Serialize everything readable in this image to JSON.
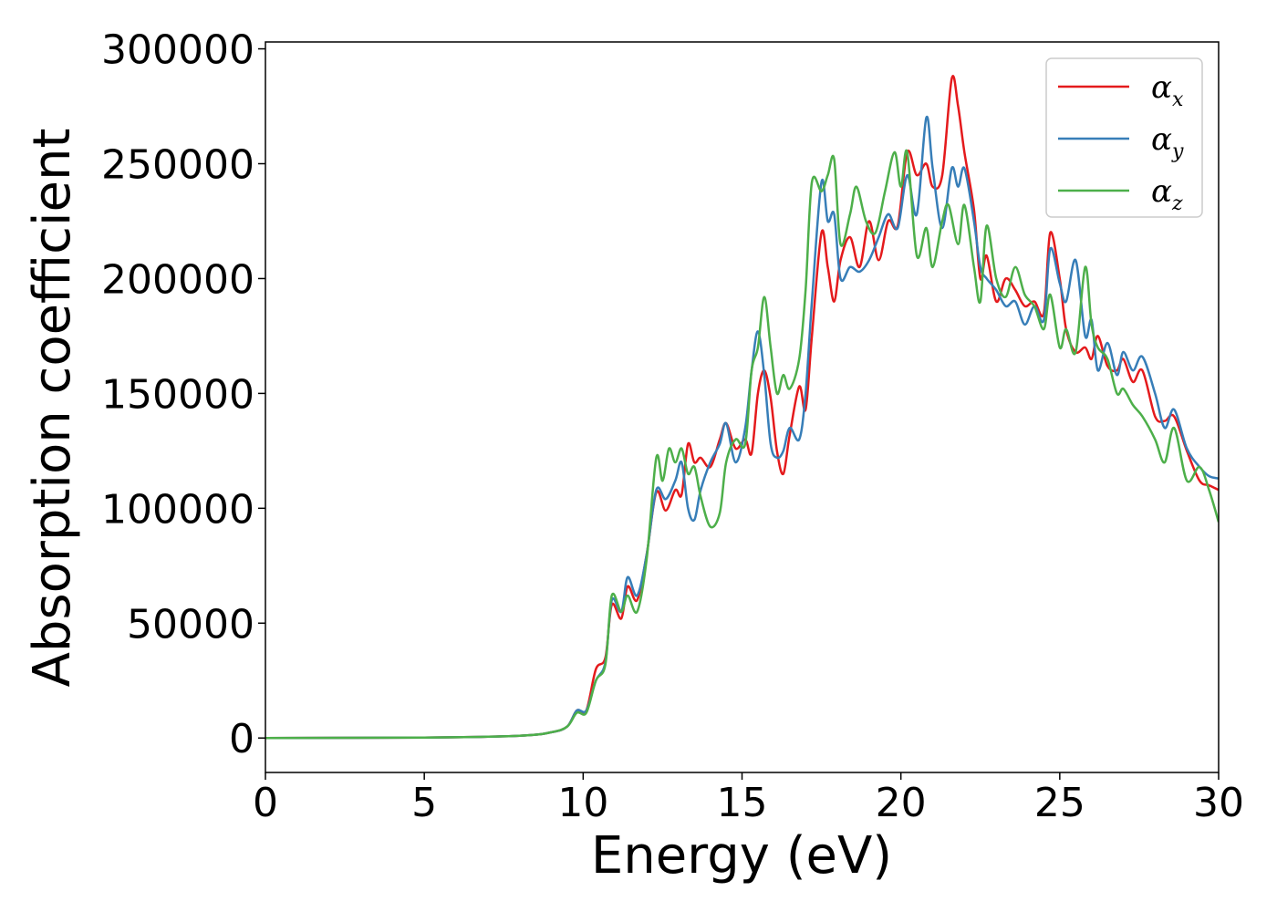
{
  "chart_data": {
    "type": "line",
    "title": "",
    "xlabel": "Energy (eV)",
    "ylabel": "Absorption coefficient",
    "xlim": [
      0,
      30
    ],
    "ylim": [
      -15000,
      303000
    ],
    "xticks": [
      0,
      5,
      10,
      15,
      20,
      25,
      30
    ],
    "yticks": [
      0,
      50000,
      100000,
      150000,
      200000,
      250000,
      300000
    ],
    "grid": false,
    "legend_position": "top-right",
    "series": [
      {
        "name": "α_x",
        "label_main": "α",
        "label_sub": "x",
        "color": "#e41a1c",
        "points": [
          [
            0,
            0
          ],
          [
            5,
            200
          ],
          [
            8,
            1000
          ],
          [
            9,
            2500
          ],
          [
            9.5,
            5000
          ],
          [
            9.8,
            12000
          ],
          [
            10.1,
            12000
          ],
          [
            10.4,
            30000
          ],
          [
            10.7,
            35000
          ],
          [
            10.9,
            58000
          ],
          [
            11.2,
            52000
          ],
          [
            11.4,
            66000
          ],
          [
            11.7,
            60000
          ],
          [
            12,
            80000
          ],
          [
            12.3,
            107000
          ],
          [
            12.6,
            99000
          ],
          [
            12.9,
            108000
          ],
          [
            13.1,
            106000
          ],
          [
            13.3,
            128000
          ],
          [
            13.5,
            120000
          ],
          [
            13.7,
            122000
          ],
          [
            14,
            118000
          ],
          [
            14.3,
            130000
          ],
          [
            14.5,
            137000
          ],
          [
            14.8,
            126000
          ],
          [
            15.1,
            130000
          ],
          [
            15.3,
            124000
          ],
          [
            15.5,
            150000
          ],
          [
            15.7,
            160000
          ],
          [
            15.9,
            148000
          ],
          [
            16.1,
            125000
          ],
          [
            16.3,
            115000
          ],
          [
            16.5,
            132000
          ],
          [
            16.8,
            153000
          ],
          [
            17,
            143000
          ],
          [
            17.2,
            175000
          ],
          [
            17.5,
            220000
          ],
          [
            17.7,
            205000
          ],
          [
            17.9,
            190000
          ],
          [
            18.1,
            208000
          ],
          [
            18.4,
            218000
          ],
          [
            18.7,
            205000
          ],
          [
            19,
            225000
          ],
          [
            19.3,
            208000
          ],
          [
            19.6,
            225000
          ],
          [
            19.9,
            223000
          ],
          [
            20.2,
            255000
          ],
          [
            20.5,
            245000
          ],
          [
            20.8,
            250000
          ],
          [
            21,
            240000
          ],
          [
            21.3,
            245000
          ],
          [
            21.6,
            287000
          ],
          [
            21.8,
            275000
          ],
          [
            22,
            255000
          ],
          [
            22.3,
            230000
          ],
          [
            22.5,
            200000
          ],
          [
            22.7,
            210000
          ],
          [
            23,
            190000
          ],
          [
            23.3,
            200000
          ],
          [
            23.6,
            195000
          ],
          [
            23.9,
            188000
          ],
          [
            24.2,
            190000
          ],
          [
            24.5,
            185000
          ],
          [
            24.7,
            220000
          ],
          [
            25,
            200000
          ],
          [
            25.2,
            178000
          ],
          [
            25.5,
            168000
          ],
          [
            25.8,
            170000
          ],
          [
            26,
            165000
          ],
          [
            26.2,
            175000
          ],
          [
            26.5,
            162000
          ],
          [
            26.8,
            160000
          ],
          [
            27,
            165000
          ],
          [
            27.3,
            155000
          ],
          [
            27.6,
            160000
          ],
          [
            28,
            140000
          ],
          [
            28.3,
            138000
          ],
          [
            28.6,
            140000
          ],
          [
            29,
            125000
          ],
          [
            29.4,
            112000
          ],
          [
            29.7,
            110000
          ],
          [
            30,
            108000
          ]
        ]
      },
      {
        "name": "α_y",
        "label_main": "α",
        "label_sub": "y",
        "color": "#377eb8",
        "points": [
          [
            0,
            0
          ],
          [
            5,
            200
          ],
          [
            8,
            1000
          ],
          [
            9,
            2500
          ],
          [
            9.5,
            5000
          ],
          [
            9.8,
            12000
          ],
          [
            10.1,
            12000
          ],
          [
            10.4,
            25000
          ],
          [
            10.7,
            33000
          ],
          [
            10.9,
            60000
          ],
          [
            11.2,
            55000
          ],
          [
            11.4,
            70000
          ],
          [
            11.7,
            62000
          ],
          [
            12,
            80000
          ],
          [
            12.3,
            108000
          ],
          [
            12.6,
            104000
          ],
          [
            12.9,
            112000
          ],
          [
            13.1,
            120000
          ],
          [
            13.3,
            100000
          ],
          [
            13.5,
            95000
          ],
          [
            13.7,
            108000
          ],
          [
            14,
            120000
          ],
          [
            14.3,
            128000
          ],
          [
            14.5,
            137000
          ],
          [
            14.8,
            120000
          ],
          [
            15.1,
            135000
          ],
          [
            15.3,
            160000
          ],
          [
            15.5,
            177000
          ],
          [
            15.7,
            158000
          ],
          [
            15.9,
            128000
          ],
          [
            16.1,
            122000
          ],
          [
            16.3,
            125000
          ],
          [
            16.5,
            135000
          ],
          [
            16.8,
            130000
          ],
          [
            17,
            150000
          ],
          [
            17.2,
            190000
          ],
          [
            17.5,
            242000
          ],
          [
            17.7,
            225000
          ],
          [
            17.9,
            228000
          ],
          [
            18.1,
            200000
          ],
          [
            18.4,
            205000
          ],
          [
            18.7,
            203000
          ],
          [
            19,
            208000
          ],
          [
            19.3,
            218000
          ],
          [
            19.6,
            228000
          ],
          [
            19.9,
            222000
          ],
          [
            20.2,
            245000
          ],
          [
            20.5,
            228000
          ],
          [
            20.8,
            270000
          ],
          [
            21,
            248000
          ],
          [
            21.3,
            222000
          ],
          [
            21.6,
            248000
          ],
          [
            21.8,
            240000
          ],
          [
            22,
            248000
          ],
          [
            22.3,
            225000
          ],
          [
            22.5,
            205000
          ],
          [
            22.7,
            200000
          ],
          [
            23,
            195000
          ],
          [
            23.3,
            188000
          ],
          [
            23.6,
            190000
          ],
          [
            23.9,
            180000
          ],
          [
            24.2,
            188000
          ],
          [
            24.5,
            182000
          ],
          [
            24.7,
            213000
          ],
          [
            25,
            198000
          ],
          [
            25.2,
            190000
          ],
          [
            25.5,
            208000
          ],
          [
            25.8,
            175000
          ],
          [
            26,
            182000
          ],
          [
            26.2,
            160000
          ],
          [
            26.5,
            172000
          ],
          [
            26.8,
            158000
          ],
          [
            27,
            168000
          ],
          [
            27.3,
            160000
          ],
          [
            27.6,
            166000
          ],
          [
            28,
            150000
          ],
          [
            28.3,
            135000
          ],
          [
            28.6,
            143000
          ],
          [
            29,
            126000
          ],
          [
            29.4,
            118000
          ],
          [
            29.7,
            114000
          ],
          [
            30,
            113000
          ]
        ]
      },
      {
        "name": "α_z",
        "label_main": "α",
        "label_sub": "z",
        "color": "#4daf4a",
        "points": [
          [
            0,
            0
          ],
          [
            5,
            200
          ],
          [
            8,
            1000
          ],
          [
            9,
            2500
          ],
          [
            9.5,
            5000
          ],
          [
            9.8,
            11000
          ],
          [
            10.1,
            11000
          ],
          [
            10.4,
            25000
          ],
          [
            10.7,
            32000
          ],
          [
            10.9,
            62000
          ],
          [
            11.2,
            55000
          ],
          [
            11.4,
            62000
          ],
          [
            11.7,
            55000
          ],
          [
            12,
            78000
          ],
          [
            12.3,
            122000
          ],
          [
            12.5,
            112000
          ],
          [
            12.7,
            126000
          ],
          [
            12.9,
            120000
          ],
          [
            13.1,
            126000
          ],
          [
            13.3,
            115000
          ],
          [
            13.5,
            118000
          ],
          [
            13.7,
            105000
          ],
          [
            14,
            92000
          ],
          [
            14.3,
            98000
          ],
          [
            14.5,
            120000
          ],
          [
            14.8,
            130000
          ],
          [
            15.1,
            128000
          ],
          [
            15.3,
            160000
          ],
          [
            15.5,
            170000
          ],
          [
            15.7,
            192000
          ],
          [
            15.9,
            170000
          ],
          [
            16.1,
            150000
          ],
          [
            16.3,
            158000
          ],
          [
            16.5,
            152000
          ],
          [
            16.8,
            165000
          ],
          [
            17,
            195000
          ],
          [
            17.2,
            242000
          ],
          [
            17.5,
            238000
          ],
          [
            17.7,
            245000
          ],
          [
            17.9,
            252000
          ],
          [
            18.1,
            215000
          ],
          [
            18.4,
            228000
          ],
          [
            18.6,
            240000
          ],
          [
            18.9,
            225000
          ],
          [
            19.2,
            220000
          ],
          [
            19.5,
            238000
          ],
          [
            19.8,
            255000
          ],
          [
            20,
            240000
          ],
          [
            20.2,
            255000
          ],
          [
            20.5,
            210000
          ],
          [
            20.8,
            222000
          ],
          [
            21,
            205000
          ],
          [
            21.3,
            225000
          ],
          [
            21.5,
            232000
          ],
          [
            21.8,
            215000
          ],
          [
            22,
            232000
          ],
          [
            22.3,
            205000
          ],
          [
            22.5,
            190000
          ],
          [
            22.7,
            223000
          ],
          [
            23,
            200000
          ],
          [
            23.3,
            192000
          ],
          [
            23.6,
            205000
          ],
          [
            23.9,
            193000
          ],
          [
            24.2,
            188000
          ],
          [
            24.5,
            178000
          ],
          [
            24.7,
            193000
          ],
          [
            25,
            170000
          ],
          [
            25.2,
            178000
          ],
          [
            25.5,
            168000
          ],
          [
            25.8,
            205000
          ],
          [
            26,
            180000
          ],
          [
            26.2,
            170000
          ],
          [
            26.5,
            165000
          ],
          [
            26.8,
            150000
          ],
          [
            27,
            152000
          ],
          [
            27.3,
            145000
          ],
          [
            27.6,
            140000
          ],
          [
            28,
            130000
          ],
          [
            28.3,
            120000
          ],
          [
            28.6,
            135000
          ],
          [
            29,
            112000
          ],
          [
            29.4,
            118000
          ],
          [
            29.7,
            108000
          ],
          [
            30,
            94000
          ]
        ]
      }
    ]
  }
}
